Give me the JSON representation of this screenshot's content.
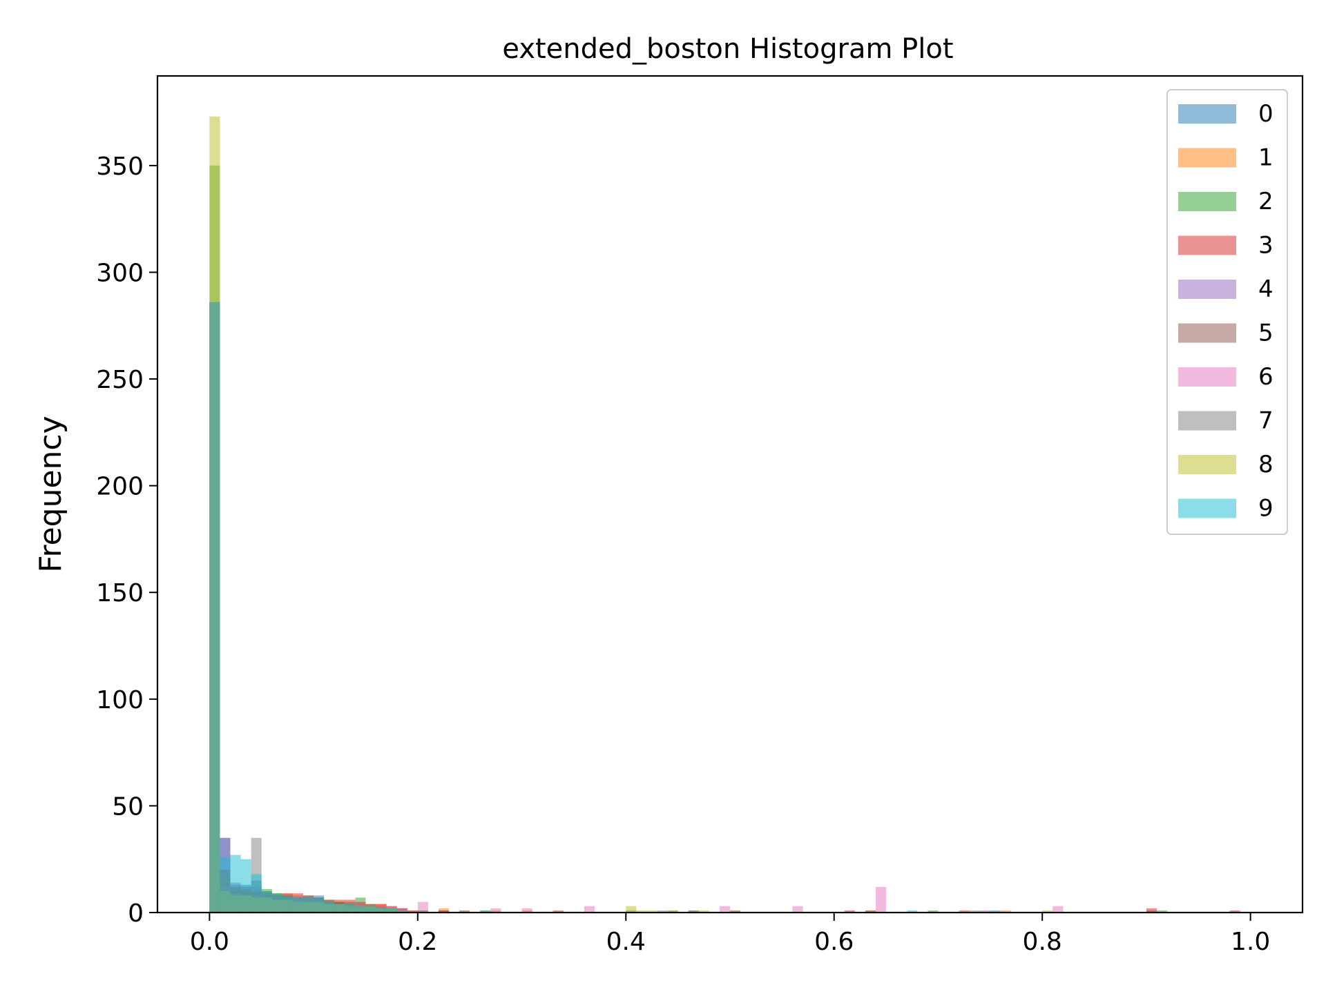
{
  "chart_data": {
    "type": "histogram",
    "title": "extended_boston Histogram Plot",
    "xlabel": "",
    "ylabel": "Frequency",
    "xlim": [
      -0.05,
      1.05
    ],
    "ylim": [
      0,
      392
    ],
    "x_ticks": [
      0.0,
      0.2,
      0.4,
      0.6,
      0.8,
      1.0
    ],
    "x_tick_labels": [
      "0.0",
      "0.2",
      "0.4",
      "0.6",
      "0.8",
      "1.0"
    ],
    "y_ticks": [
      0,
      50,
      100,
      150,
      200,
      250,
      300,
      350
    ],
    "y_tick_labels": [
      "0",
      "50",
      "100",
      "150",
      "200",
      "250",
      "300",
      "350"
    ],
    "bins": 100,
    "bin_width": 0.01,
    "bar_opacity": 0.5,
    "grid": false,
    "legend_position": "top-right",
    "series": [
      {
        "name": "0",
        "color": "#1f77b4",
        "bins": [
          [
            0,
            286
          ],
          [
            1,
            35
          ],
          [
            2,
            13
          ],
          [
            3,
            13
          ],
          [
            4,
            15
          ],
          [
            5,
            10
          ],
          [
            6,
            9
          ],
          [
            7,
            8
          ],
          [
            8,
            7
          ],
          [
            9,
            6
          ],
          [
            10,
            8
          ],
          [
            11,
            5
          ],
          [
            12,
            5
          ],
          [
            13,
            4
          ],
          [
            14,
            4
          ],
          [
            15,
            3
          ],
          [
            16,
            3
          ],
          [
            17,
            2
          ],
          [
            18,
            2
          ],
          [
            20,
            1
          ],
          [
            22,
            1
          ],
          [
            50,
            1
          ],
          [
            75,
            1
          ]
        ]
      },
      {
        "name": "1",
        "color": "#ff7f0e",
        "bins": [
          [
            0,
            286
          ],
          [
            1,
            15
          ],
          [
            2,
            10
          ],
          [
            3,
            10
          ],
          [
            4,
            8
          ],
          [
            5,
            10
          ],
          [
            6,
            8
          ],
          [
            7,
            9
          ],
          [
            8,
            8
          ],
          [
            9,
            7
          ],
          [
            10,
            6
          ],
          [
            11,
            5
          ],
          [
            12,
            5
          ],
          [
            13,
            4
          ],
          [
            14,
            4
          ],
          [
            15,
            3
          ],
          [
            16,
            4
          ],
          [
            17,
            3
          ],
          [
            18,
            2
          ],
          [
            19,
            1
          ],
          [
            22,
            2
          ],
          [
            24,
            1
          ],
          [
            27,
            1
          ],
          [
            30,
            1
          ],
          [
            50,
            1
          ],
          [
            63,
            1
          ],
          [
            76,
            1
          ]
        ]
      },
      {
        "name": "2",
        "color": "#2ca02c",
        "bins": [
          [
            0,
            350
          ],
          [
            1,
            10
          ],
          [
            2,
            8
          ],
          [
            3,
            10
          ],
          [
            4,
            8
          ],
          [
            5,
            11
          ],
          [
            6,
            9
          ],
          [
            7,
            8
          ],
          [
            8,
            7
          ],
          [
            9,
            8
          ],
          [
            10,
            7
          ],
          [
            11,
            6
          ],
          [
            12,
            5
          ],
          [
            13,
            5
          ],
          [
            14,
            7
          ],
          [
            15,
            4
          ],
          [
            16,
            3
          ],
          [
            17,
            2
          ],
          [
            18,
            1
          ],
          [
            20,
            1
          ],
          [
            26,
            1
          ],
          [
            40,
            1
          ],
          [
            46,
            1
          ],
          [
            69,
            1
          ],
          [
            91,
            1
          ]
        ]
      },
      {
        "name": "3",
        "color": "#d62728",
        "bins": [
          [
            0,
            286
          ],
          [
            1,
            12
          ],
          [
            2,
            10
          ],
          [
            3,
            11
          ],
          [
            4,
            9
          ],
          [
            5,
            9
          ],
          [
            6,
            8
          ],
          [
            7,
            9
          ],
          [
            8,
            9
          ],
          [
            9,
            8
          ],
          [
            10,
            7
          ],
          [
            11,
            6
          ],
          [
            12,
            6
          ],
          [
            13,
            6
          ],
          [
            14,
            5
          ],
          [
            15,
            4
          ],
          [
            16,
            4
          ],
          [
            17,
            3
          ],
          [
            18,
            2
          ],
          [
            19,
            1
          ],
          [
            22,
            1
          ],
          [
            33,
            1
          ],
          [
            61,
            1
          ],
          [
            72,
            1
          ],
          [
            90,
            2
          ],
          [
            98,
            1
          ]
        ]
      },
      {
        "name": "4",
        "color": "#9467bd",
        "bins": [
          [
            0,
            286
          ],
          [
            1,
            35
          ],
          [
            2,
            14
          ],
          [
            3,
            12
          ],
          [
            4,
            12
          ],
          [
            5,
            9
          ],
          [
            6,
            8
          ],
          [
            7,
            7
          ],
          [
            8,
            7
          ],
          [
            9,
            7
          ],
          [
            10,
            6
          ],
          [
            11,
            4
          ],
          [
            12,
            4
          ],
          [
            13,
            3
          ],
          [
            14,
            3
          ],
          [
            15,
            2
          ],
          [
            16,
            2
          ],
          [
            17,
            2
          ],
          [
            18,
            1
          ],
          [
            43,
            1
          ],
          [
            74,
            1
          ]
        ]
      },
      {
        "name": "5",
        "color": "#8c564b",
        "bins": [
          [
            0,
            286
          ],
          [
            1,
            20
          ],
          [
            2,
            12
          ],
          [
            3,
            10
          ],
          [
            4,
            10
          ],
          [
            5,
            8
          ],
          [
            6,
            8
          ],
          [
            7,
            6
          ],
          [
            8,
            6
          ],
          [
            9,
            6
          ],
          [
            10,
            5
          ],
          [
            11,
            4
          ],
          [
            12,
            4
          ],
          [
            13,
            3
          ],
          [
            14,
            3
          ],
          [
            15,
            3
          ],
          [
            16,
            2
          ],
          [
            17,
            2
          ],
          [
            18,
            1
          ],
          [
            44,
            1
          ],
          [
            63,
            1
          ],
          [
            90,
            1
          ]
        ]
      },
      {
        "name": "6",
        "color": "#e377c2",
        "bins": [
          [
            0,
            286
          ],
          [
            1,
            12
          ],
          [
            2,
            9
          ],
          [
            3,
            8
          ],
          [
            4,
            8
          ],
          [
            5,
            7
          ],
          [
            6,
            6
          ],
          [
            7,
            6
          ],
          [
            8,
            6
          ],
          [
            9,
            5
          ],
          [
            10,
            5
          ],
          [
            11,
            4
          ],
          [
            12,
            4
          ],
          [
            13,
            4
          ],
          [
            14,
            4
          ],
          [
            15,
            3
          ],
          [
            16,
            3
          ],
          [
            17,
            3
          ],
          [
            18,
            2
          ],
          [
            20,
            5
          ],
          [
            27,
            2
          ],
          [
            30,
            2
          ],
          [
            36,
            3
          ],
          [
            49,
            3
          ],
          [
            56,
            3
          ],
          [
            64,
            12
          ],
          [
            81,
            3
          ]
        ]
      },
      {
        "name": "7",
        "color": "#7f7f7f",
        "bins": [
          [
            0,
            286
          ],
          [
            1,
            15
          ],
          [
            2,
            10
          ],
          [
            3,
            12
          ],
          [
            4,
            35
          ],
          [
            5,
            9
          ],
          [
            6,
            8
          ],
          [
            7,
            7
          ],
          [
            8,
            7
          ],
          [
            9,
            7
          ],
          [
            10,
            6
          ],
          [
            11,
            5
          ],
          [
            12,
            4
          ],
          [
            13,
            4
          ],
          [
            14,
            3
          ],
          [
            15,
            3
          ],
          [
            16,
            2
          ],
          [
            17,
            2
          ],
          [
            18,
            1
          ],
          [
            24,
            1
          ],
          [
            46,
            1
          ],
          [
            73,
            1
          ]
        ]
      },
      {
        "name": "8",
        "color": "#bcbd22",
        "bins": [
          [
            0,
            373
          ],
          [
            1,
            10
          ],
          [
            2,
            8
          ],
          [
            3,
            8
          ],
          [
            4,
            7
          ],
          [
            5,
            7
          ],
          [
            6,
            6
          ],
          [
            7,
            6
          ],
          [
            8,
            5
          ],
          [
            9,
            5
          ],
          [
            10,
            5
          ],
          [
            11,
            4
          ],
          [
            12,
            4
          ],
          [
            13,
            3
          ],
          [
            14,
            3
          ],
          [
            15,
            3
          ],
          [
            16,
            2
          ],
          [
            17,
            2
          ],
          [
            18,
            1
          ],
          [
            40,
            3
          ],
          [
            41,
            1
          ],
          [
            42,
            1
          ],
          [
            44,
            1
          ],
          [
            47,
            1
          ],
          [
            80,
            1
          ]
        ]
      },
      {
        "name": "9",
        "color": "#17becf",
        "bins": [
          [
            0,
            286
          ],
          [
            1,
            26
          ],
          [
            2,
            27
          ],
          [
            3,
            25
          ],
          [
            4,
            18
          ],
          [
            5,
            10
          ],
          [
            6,
            8
          ],
          [
            7,
            8
          ],
          [
            8,
            7
          ],
          [
            9,
            7
          ],
          [
            10,
            7
          ],
          [
            11,
            5
          ],
          [
            12,
            4
          ],
          [
            13,
            4
          ],
          [
            14,
            3
          ],
          [
            15,
            3
          ],
          [
            16,
            2
          ],
          [
            17,
            2
          ],
          [
            18,
            1
          ],
          [
            26,
            1
          ],
          [
            67,
            1
          ]
        ]
      }
    ]
  }
}
